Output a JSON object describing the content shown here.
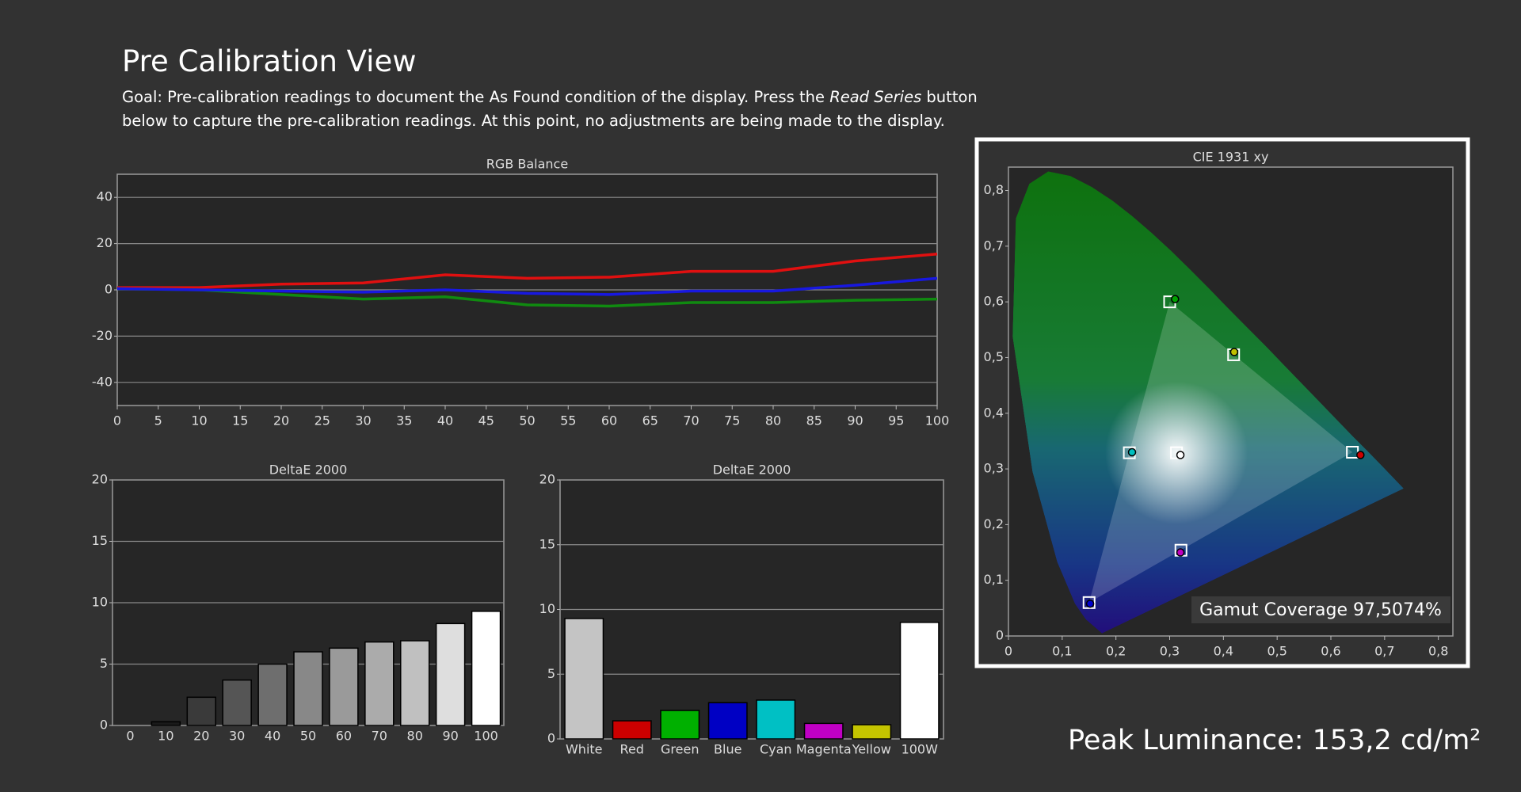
{
  "header": {
    "title": "Pre Calibration View",
    "goal": [
      "Goal: Pre-calibration readings to document the As Found condition of the display. Press the ",
      "Read Series",
      " button below to capture the pre-calibration readings. At this point, no adjustments are being made to the display."
    ]
  },
  "chart_data": [
    {
      "type": "line",
      "title": "RGB Balance",
      "x": [
        0,
        10,
        20,
        30,
        40,
        50,
        60,
        70,
        80,
        90,
        100
      ],
      "series": [
        {
          "color": "#e01010",
          "values": [
            1,
            1,
            2.5,
            3,
            6.5,
            5,
            5.5,
            8,
            8,
            12.5,
            15.5
          ]
        },
        {
          "color": "#108a10",
          "values": [
            0.5,
            0,
            -2,
            -4,
            -3,
            -6.5,
            -7,
            -5.5,
            -5.5,
            -4.5,
            -4
          ]
        },
        {
          "color": "#1818e0",
          "values": [
            0.5,
            0,
            -0.5,
            -1,
            0,
            -1.5,
            -2,
            -0.5,
            -0.5,
            2,
            5
          ]
        }
      ],
      "xlim": [
        0,
        100
      ],
      "xticks": [
        0,
        5,
        10,
        15,
        20,
        25,
        30,
        35,
        40,
        45,
        50,
        55,
        60,
        65,
        70,
        75,
        80,
        85,
        90,
        95,
        100
      ],
      "ylim": [
        -50,
        50
      ],
      "yticks": [
        -40,
        -20,
        0,
        20,
        40
      ],
      "grid": true
    },
    {
      "type": "bar",
      "title": "DeltaE 2000",
      "categories": [
        "0",
        "10",
        "20",
        "30",
        "40",
        "50",
        "60",
        "70",
        "80",
        "90",
        "100"
      ],
      "values": [
        0,
        0.3,
        2.3,
        3.7,
        5.0,
        6.0,
        6.3,
        6.8,
        6.9,
        8.3,
        9.3
      ],
      "colors": [
        "#000000",
        "#1a1a1a",
        "#3a3a3a",
        "#555555",
        "#6e6e6e",
        "#888888",
        "#9a9a9a",
        "#ababab",
        "#c0c0c0",
        "#dedede",
        "#ffffff"
      ],
      "ylim": [
        0,
        20
      ],
      "yticks": [
        0,
        5,
        10,
        15,
        20
      ],
      "grid": true
    },
    {
      "type": "bar",
      "title": "DeltaE 2000",
      "categories": [
        "White",
        "Red",
        "Green",
        "Blue",
        "Cyan",
        "Magenta",
        "Yellow",
        "100W"
      ],
      "values": [
        9.3,
        1.4,
        2.2,
        2.8,
        3.0,
        1.2,
        1.1,
        9.0
      ],
      "colors": [
        "#c4c4c4",
        "#cc0000",
        "#00b000",
        "#0000c4",
        "#00c0c4",
        "#c000c4",
        "#c4c400",
        "#ffffff"
      ],
      "ylim": [
        0,
        20
      ],
      "yticks": [
        0,
        5,
        10,
        15,
        20
      ],
      "grid": true
    },
    {
      "type": "scatter",
      "title": "CIE 1931 xy",
      "annotation": "Gamut Coverage 97,5074%",
      "series": [
        {
          "marker": "square",
          "color": "#ffffff",
          "x": [
            0.64,
            0.3,
            0.15,
            0.225,
            0.321,
            0.419,
            0.3127
          ],
          "y": [
            0.33,
            0.6,
            0.06,
            0.329,
            0.154,
            0.505,
            0.329
          ]
        },
        {
          "marker": "circle",
          "colors": [
            "#cc0000",
            "#00a000",
            "#0000cc",
            "#00c0c0",
            "#c000c0",
            "#c0c000",
            "#ffffff"
          ],
          "x": [
            0.655,
            0.31,
            0.152,
            0.23,
            0.32,
            0.42,
            0.32
          ],
          "y": [
            0.325,
            0.605,
            0.058,
            0.33,
            0.15,
            0.51,
            0.325
          ]
        }
      ],
      "xlim": [
        0,
        0.827
      ],
      "xticks": [
        0,
        {
          "value": 0.1,
          "label": "0,1"
        },
        {
          "value": 0.2,
          "label": "0,2"
        },
        {
          "value": 0.3,
          "label": "0,3"
        },
        {
          "value": 0.4,
          "label": "0,4"
        },
        {
          "value": 0.5,
          "label": "0,5"
        },
        {
          "value": 0.6,
          "label": "0,6"
        },
        {
          "value": 0.7,
          "label": "0,7"
        },
        {
          "value": 0.8,
          "label": "0,8"
        }
      ],
      "ylim": [
        0,
        0.842
      ],
      "yticks": [
        0,
        {
          "value": 0.1,
          "label": "0,1"
        },
        {
          "value": 0.2,
          "label": "0,2"
        },
        {
          "value": 0.3,
          "label": "0,3"
        },
        {
          "value": 0.4,
          "label": "0,4"
        },
        {
          "value": 0.5,
          "label": "0,5"
        },
        {
          "value": 0.6,
          "label": "0,6"
        },
        {
          "value": 0.7,
          "label": "0,7"
        },
        {
          "value": 0.8,
          "label": "0,8"
        }
      ],
      "grid": false
    }
  ],
  "footer": {
    "peak_luminance": "Peak Luminance: 153,2 cd/m²"
  }
}
